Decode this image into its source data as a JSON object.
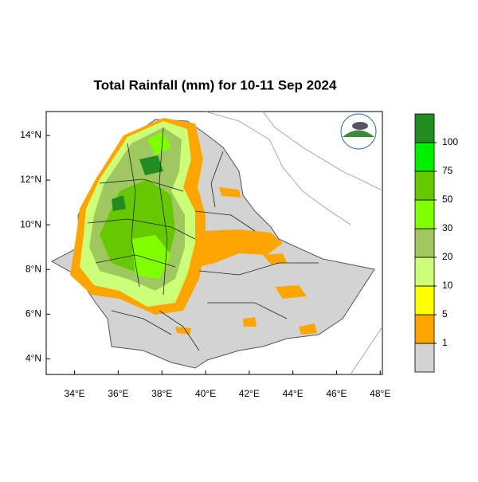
{
  "chart_data": {
    "type": "map",
    "title": "Total Rainfall (mm) for 10-11 Sep 2024",
    "xlim": [
      32.7,
      48.1
    ],
    "ylim": [
      3.3,
      15.07
    ],
    "xticks": [
      {
        "value": 34,
        "label": "34°E"
      },
      {
        "value": 36,
        "label": "36°E"
      },
      {
        "value": 38,
        "label": "38°E"
      },
      {
        "value": 40,
        "label": "40°E"
      },
      {
        "value": 42,
        "label": "42°E"
      },
      {
        "value": 44,
        "label": "44°E"
      },
      {
        "value": 46,
        "label": "46°E"
      },
      {
        "value": 48,
        "label": "48°E"
      }
    ],
    "yticks": [
      {
        "value": 4,
        "label": "4°N"
      },
      {
        "value": 6,
        "label": "6°N"
      },
      {
        "value": 8,
        "label": "8°N"
      },
      {
        "value": 10,
        "label": "10°N"
      },
      {
        "value": 12,
        "label": "12°N"
      },
      {
        "value": 14,
        "label": "14°N"
      }
    ],
    "levels": [
      1,
      5,
      10,
      20,
      30,
      50,
      75,
      100
    ],
    "colors": [
      "#d3d3d3",
      "#ffa500",
      "#ffff00",
      "#ccff77",
      "#9fc860",
      "#7fff00",
      "#66c800",
      "#00ee00",
      "#228b22"
    ]
  }
}
